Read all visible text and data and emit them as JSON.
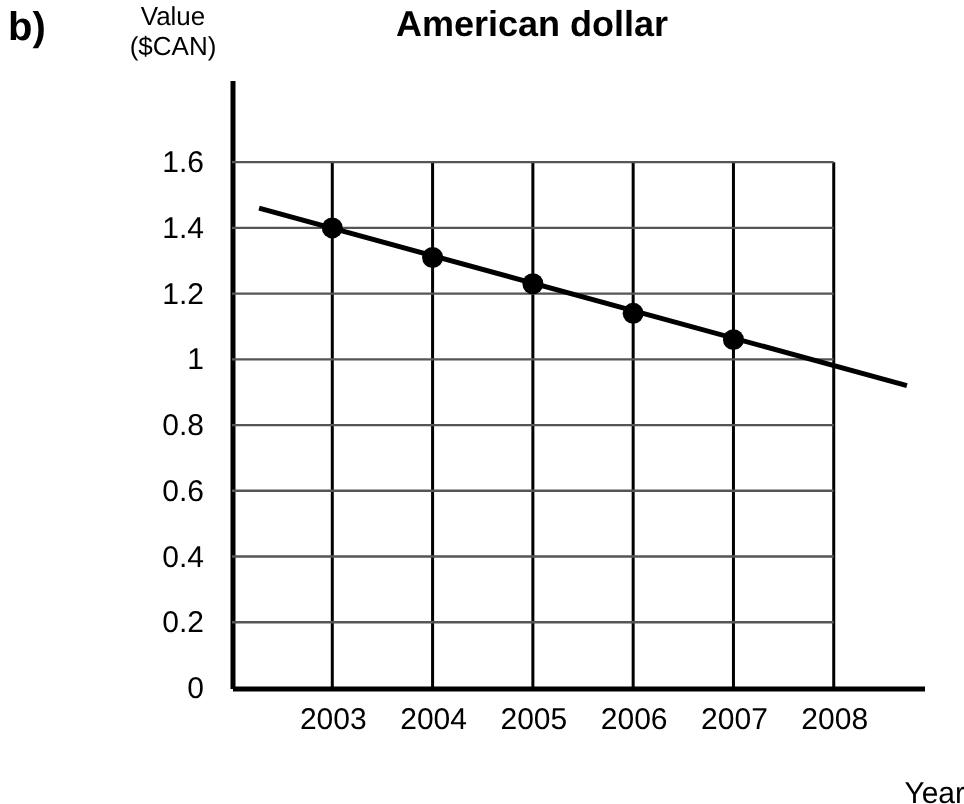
{
  "chart_data": {
    "type": "line",
    "title": "American dollar",
    "xlabel": "Year",
    "ylabel": "Value ($CAN)",
    "annotations": [
      "b)"
    ],
    "xlim": [
      2002,
      2008.9
    ],
    "ylim": [
      0,
      1.85
    ],
    "xticks": [
      2003,
      2004,
      2005,
      2006,
      2007,
      2008
    ],
    "yticks": [
      0,
      0.2,
      0.4,
      0.6,
      0.8,
      1,
      1.2,
      1.4,
      1.6
    ],
    "grid": true,
    "series": [
      {
        "type": "scatter",
        "marker": "circle",
        "color": "#000000",
        "x": [
          2003,
          2004,
          2005,
          2006,
          2007
        ],
        "values": [
          1.4,
          1.31,
          1.23,
          1.14,
          1.06
        ]
      },
      {
        "color": "#000000",
        "x": [
          2002.27,
          2008.73
        ],
        "values": [
          1.46,
          0.92
        ]
      }
    ]
  }
}
